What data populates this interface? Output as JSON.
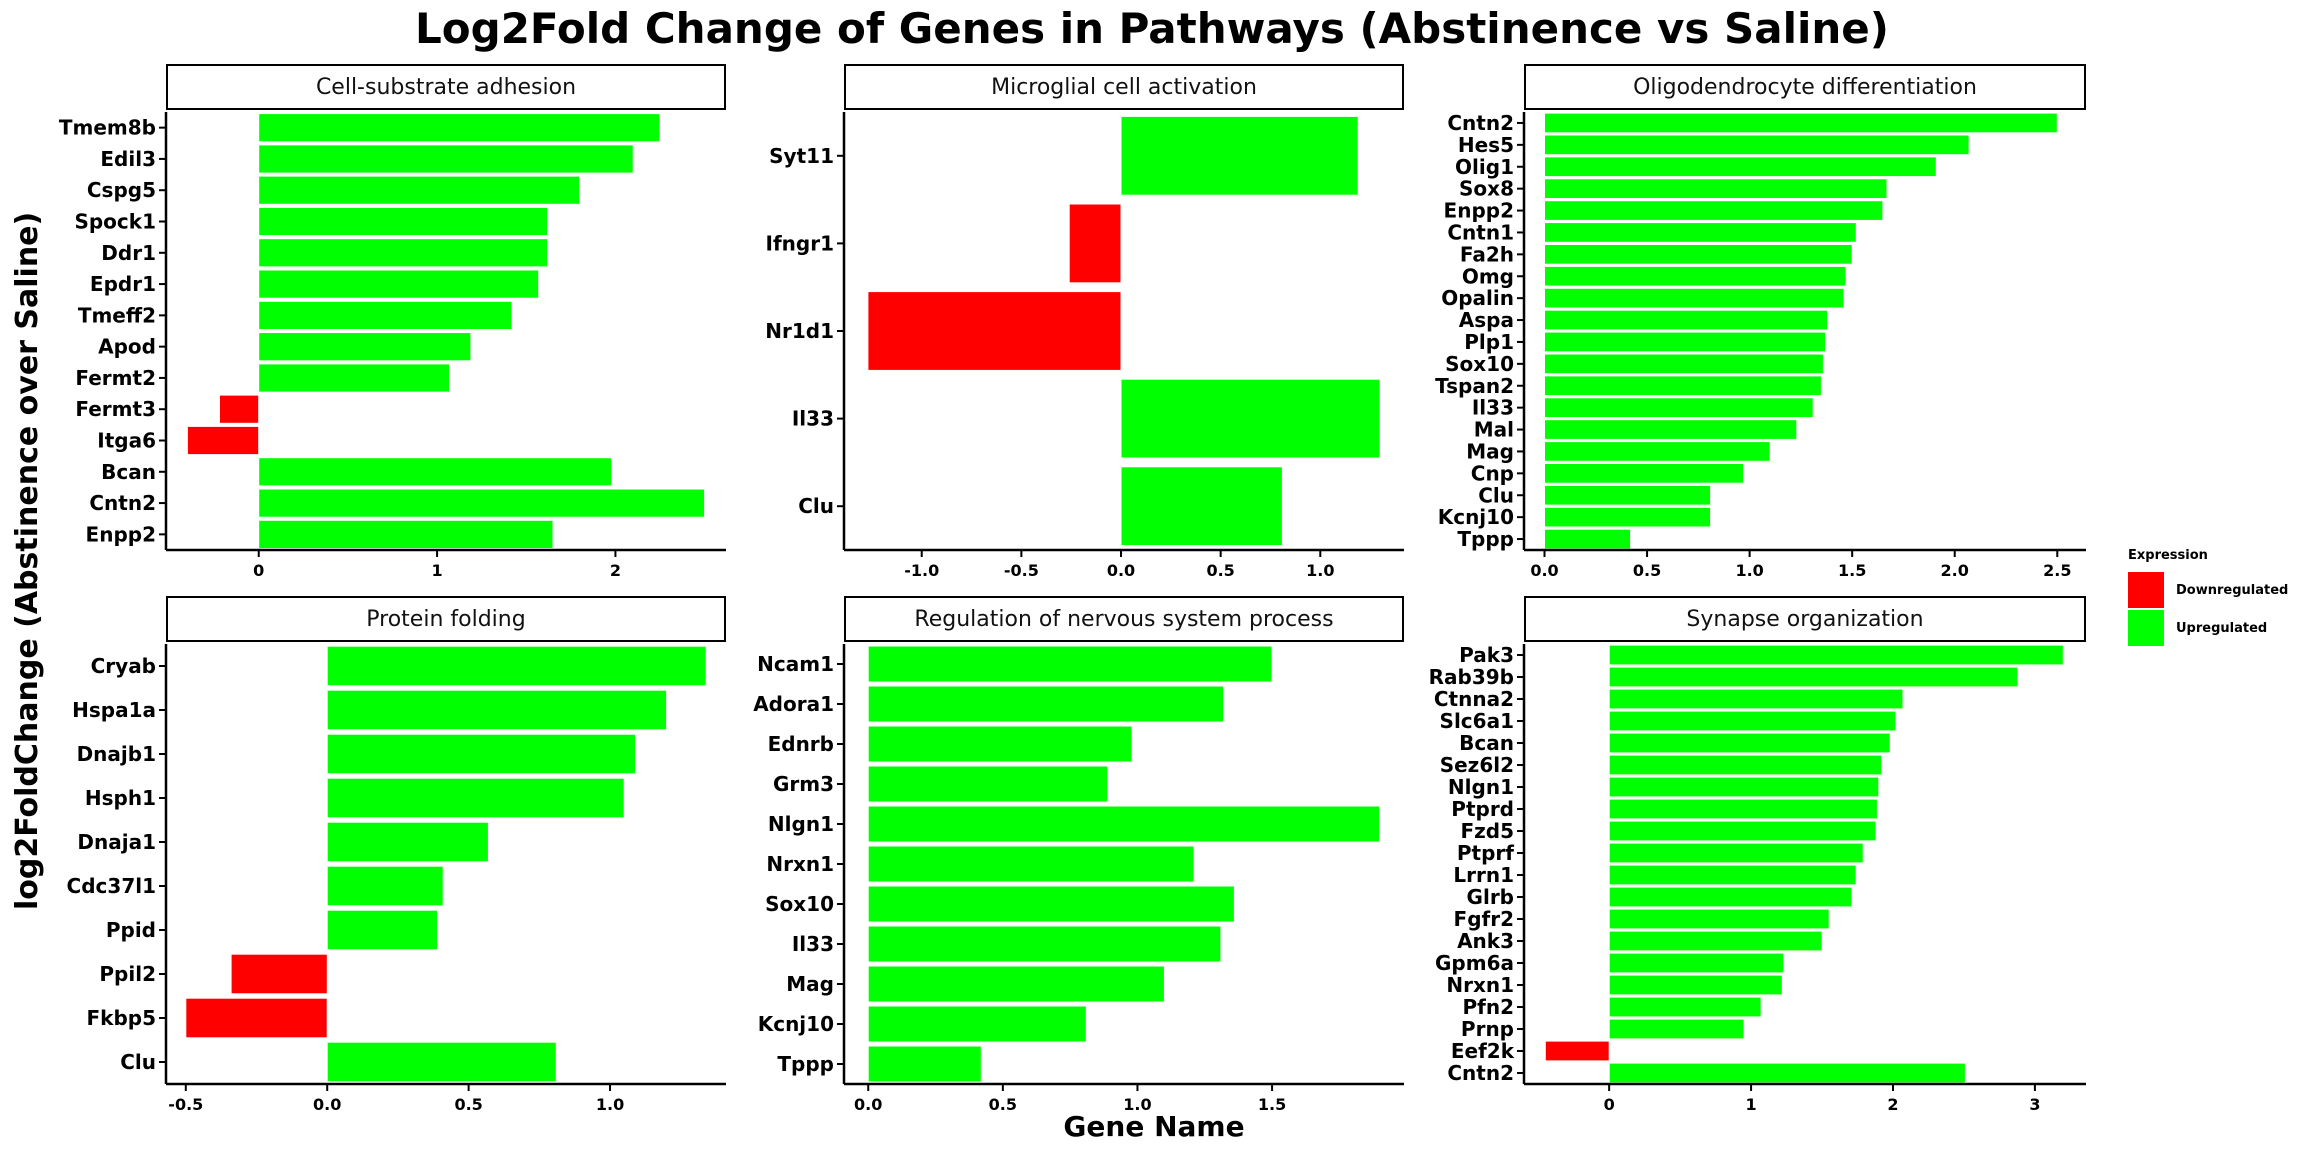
{
  "title": "Log2Fold Change of Genes in Pathways  (Abstinence vs Saline)",
  "ylabel": "log2FoldChange (Abstinence over Saline)",
  "xlabel": "Gene Name",
  "colors": {
    "Downregulated": "#ff0000",
    "Upregulated": "#00ff00"
  },
  "legend": {
    "title": "Expression",
    "items": [
      "Downregulated",
      "Upregulated"
    ]
  },
  "chart_data": [
    {
      "type": "bar",
      "orientation": "horizontal",
      "title": "Cell-substrate adhesion",
      "categories": [
        "Tmem8b",
        "Edil3",
        "Cspg5",
        "Spock1",
        "Ddr1",
        "Epdr1",
        "Tmeff2",
        "Apod",
        "Fermt2",
        "Fermt3",
        "Itga6",
        "Bcan",
        "Cntn2",
        "Enpp2"
      ],
      "values": [
        2.25,
        2.1,
        1.8,
        1.62,
        1.62,
        1.57,
        1.42,
        1.19,
        1.07,
        -0.22,
        -0.4,
        1.98,
        2.5,
        1.65
      ],
      "xlim": [
        -0.52,
        2.62
      ],
      "ticks": [
        0,
        1,
        2
      ]
    },
    {
      "type": "bar",
      "orientation": "horizontal",
      "title": "Microglial cell activation",
      "categories": [
        "Syt11",
        "Ifngr1",
        "Nr1d1",
        "Il33",
        "Clu"
      ],
      "values": [
        1.19,
        -0.26,
        -1.27,
        1.3,
        0.81
      ],
      "xlim": [
        -1.39,
        1.42
      ],
      "ticks": [
        -1.0,
        -0.5,
        0.0,
        0.5,
        1.0
      ]
    },
    {
      "type": "bar",
      "orientation": "horizontal",
      "title": "Oligodendrocyte differentiation",
      "categories": [
        "Cntn2",
        "Hes5",
        "Olig1",
        "Sox8",
        "Enpp2",
        "Cntn1",
        "Fa2h",
        "Omg",
        "Opalin",
        "Aspa",
        "Plp1",
        "Sox10",
        "Tspan2",
        "Il33",
        "Mal",
        "Mag",
        "Cnp",
        "Clu",
        "Kcnj10",
        "Tppp"
      ],
      "values": [
        2.5,
        2.07,
        1.91,
        1.67,
        1.65,
        1.52,
        1.5,
        1.47,
        1.46,
        1.38,
        1.37,
        1.36,
        1.35,
        1.31,
        1.23,
        1.1,
        0.97,
        0.81,
        0.81,
        0.42
      ],
      "xlim": [
        -0.1,
        2.64
      ],
      "ticks": [
        0.0,
        0.5,
        1.0,
        1.5,
        2.0,
        2.5
      ]
    },
    {
      "type": "bar",
      "orientation": "horizontal",
      "title": "Protein folding",
      "categories": [
        "Cryab",
        "Hspa1a",
        "Dnajb1",
        "Hsph1",
        "Dnaja1",
        "Cdc37l1",
        "Ppid",
        "Ppil2",
        "Fkbp5",
        "Clu"
      ],
      "values": [
        1.34,
        1.2,
        1.09,
        1.05,
        0.57,
        0.41,
        0.39,
        -0.34,
        -0.5,
        0.81
      ],
      "xlim": [
        -0.57,
        1.41
      ],
      "ticks": [
        -0.5,
        0.0,
        0.5,
        1.0
      ]
    },
    {
      "type": "bar",
      "orientation": "horizontal",
      "title": "Regulation of nervous system process",
      "categories": [
        "Ncam1",
        "Adora1",
        "Ednrb",
        "Grm3",
        "Nlgn1",
        "Nrxn1",
        "Sox10",
        "Il33",
        "Mag",
        "Kcnj10",
        "Tppp"
      ],
      "values": [
        1.5,
        1.32,
        0.98,
        0.89,
        1.9,
        1.21,
        1.36,
        1.31,
        1.1,
        0.81,
        0.42
      ],
      "xlim": [
        -0.09,
        1.99
      ],
      "ticks": [
        0.0,
        0.5,
        1.0,
        1.5
      ]
    },
    {
      "type": "bar",
      "orientation": "horizontal",
      "title": "Synapse organization",
      "categories": [
        "Pak3",
        "Rab39b",
        "Ctnna2",
        "Slc6a1",
        "Bcan",
        "Sez6l2",
        "Nlgn1",
        "Ptprd",
        "Fzd5",
        "Ptprf",
        "Lrrn1",
        "Glrb",
        "Fgfr2",
        "Ank3",
        "Gpm6a",
        "Nrxn1",
        "Pfn2",
        "Prnp",
        "Eef2k",
        "Cntn2"
      ],
      "values": [
        3.2,
        2.88,
        2.07,
        2.02,
        1.98,
        1.92,
        1.9,
        1.89,
        1.88,
        1.79,
        1.74,
        1.71,
        1.55,
        1.5,
        1.23,
        1.22,
        1.07,
        0.95,
        -0.45,
        2.51
      ],
      "xlim": [
        -0.6,
        3.36
      ],
      "ticks": [
        0,
        1,
        2,
        3
      ]
    }
  ]
}
